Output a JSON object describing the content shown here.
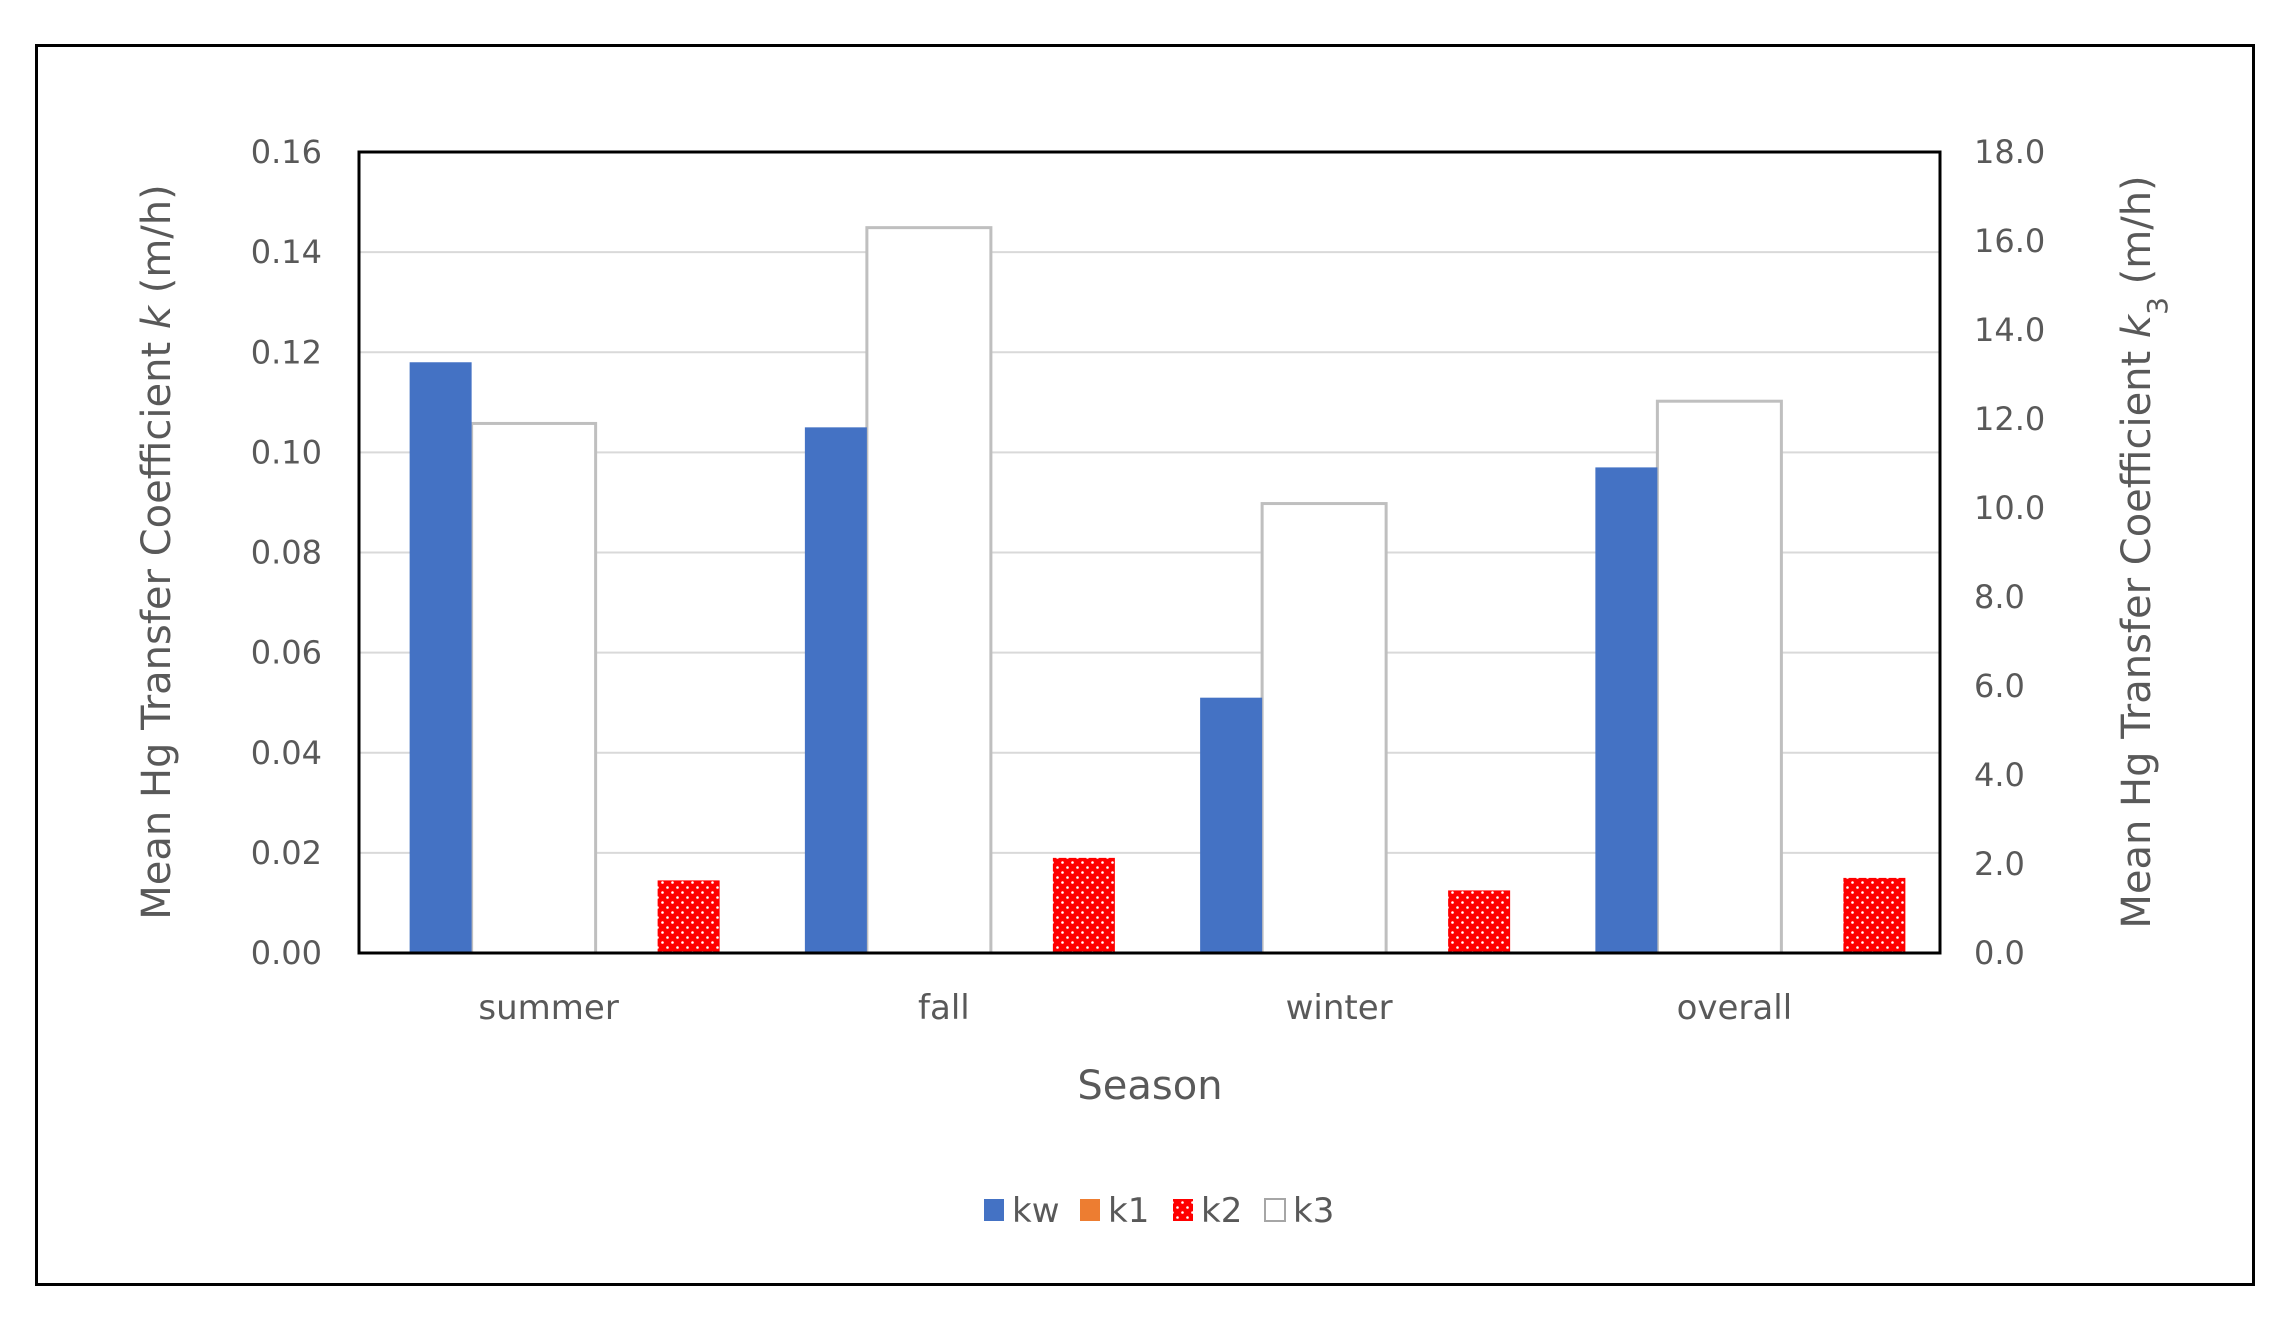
{
  "chart_data": {
    "type": "bar",
    "categories": [
      "summer",
      "fall",
      "winter",
      "overall"
    ],
    "series": [
      {
        "name": "kw",
        "axis": "left",
        "color": "#4472C4",
        "pattern": "solid",
        "values": [
          0.118,
          0.105,
          0.051,
          0.097
        ]
      },
      {
        "name": "k1",
        "axis": "left",
        "color": "#ED7D31",
        "pattern": "solid",
        "values": [
          null,
          null,
          null,
          null
        ]
      },
      {
        "name": "k2",
        "axis": "left",
        "color": "#FF0000",
        "pattern": "dotted",
        "values": [
          0.0145,
          0.019,
          0.0125,
          0.015
        ]
      },
      {
        "name": "k3",
        "axis": "right",
        "color": "#FFFFFF",
        "pattern": "outline",
        "values": [
          11.9,
          16.3,
          10.1,
          12.4
        ]
      }
    ],
    "xlabel": "Season",
    "ylabel_left": {
      "prefix": "Mean Hg Transfer Coefficient ",
      "symbol": "k",
      "subscript": "",
      "suffix": " (m/h)"
    },
    "ylabel_right": {
      "prefix": "Mean Hg Transfer Coefficient ",
      "symbol": "k",
      "subscript": "3",
      "suffix": " (m/h)"
    },
    "ylim_left": [
      0,
      0.16
    ],
    "ylim_right": [
      0,
      18
    ],
    "yticks_left": [
      "0.00",
      "0.02",
      "0.04",
      "0.06",
      "0.08",
      "0.10",
      "0.12",
      "0.14",
      "0.16"
    ],
    "yticks_right": [
      "0.0",
      "2.0",
      "4.0",
      "6.0",
      "8.0",
      "10.0",
      "12.0",
      "14.0",
      "16.0",
      "18.0"
    ],
    "grid": true,
    "legend_position": "bottom"
  }
}
